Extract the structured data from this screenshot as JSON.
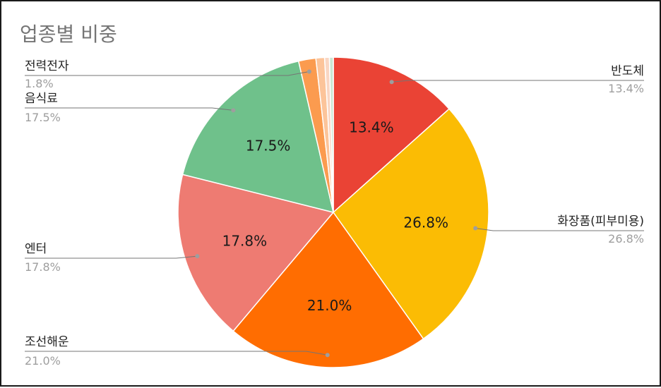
{
  "chart_data": {
    "type": "pie",
    "title": "업종별 비중",
    "slices": [
      {
        "name": "반도체",
        "value": 13.4,
        "label": "13.4%",
        "color": "#ea4335"
      },
      {
        "name": "화장품(피부미용)",
        "value": 26.8,
        "label": "26.8%",
        "color": "#fbbc04"
      },
      {
        "name": "조선해운",
        "value": 21.0,
        "label": "21.0%",
        "color": "#ff6d01"
      },
      {
        "name": "엔터",
        "value": 17.8,
        "label": "17.8%",
        "color": "#ee7b72"
      },
      {
        "name": "음식료",
        "value": 17.5,
        "label": "17.5%",
        "color": "#6fc18b"
      },
      {
        "name": "전력전자",
        "value": 1.8,
        "label": "1.8%",
        "color": "#fb9b4f"
      },
      {
        "value": 0.9,
        "color": "#fcc49a"
      },
      {
        "value": 0.5,
        "color": "#f9d6c3"
      },
      {
        "value": 0.4,
        "color": "#c9e8d3"
      }
    ],
    "legend_placement": "outside-labels"
  }
}
